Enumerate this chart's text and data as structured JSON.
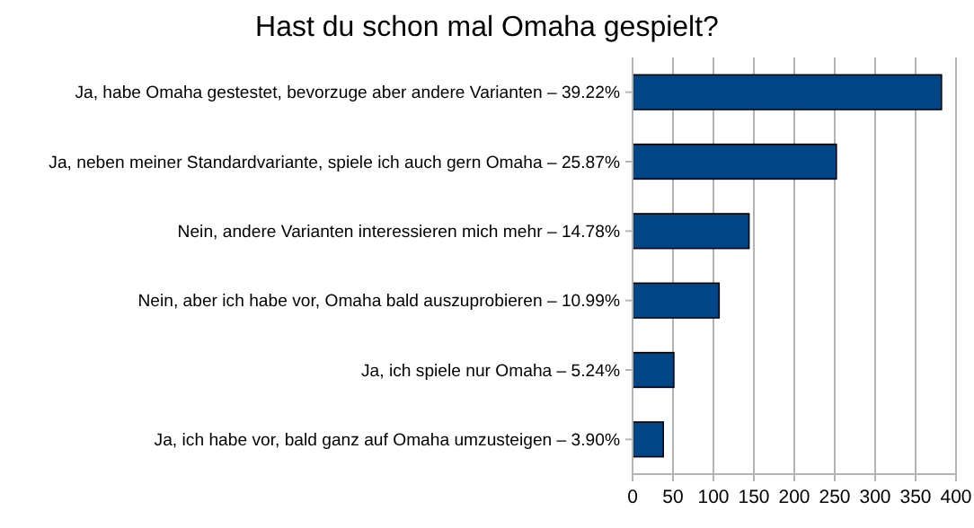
{
  "chart_data": {
    "type": "bar",
    "orientation": "horizontal",
    "title": "Hast du schon mal Omaha gespielt?",
    "categories": [
      "Ja, habe Omaha gestestet, bevorzuge aber andere Varianten – 39.22%",
      "Ja, neben meiner Standardvariante, spiele ich auch gern Omaha – 25.87%",
      "Nein, andere Varianten interessieren mich mehr – 14.78%",
      "Nein, aber ich habe vor, Omaha bald auszuprobieren – 10.99%",
      "Ja, ich spiele nur Omaha – 5.24%",
      "Ja, ich habe vor, bald ganz auf Omaha umzusteigen – 3.90%"
    ],
    "values": [
      382,
      252,
      144,
      107,
      51,
      38
    ],
    "color": "#004586",
    "xlim": [
      0,
      400
    ],
    "xticks": [
      0,
      50,
      100,
      150,
      200,
      250,
      300,
      350,
      400
    ],
    "grid": "x"
  }
}
